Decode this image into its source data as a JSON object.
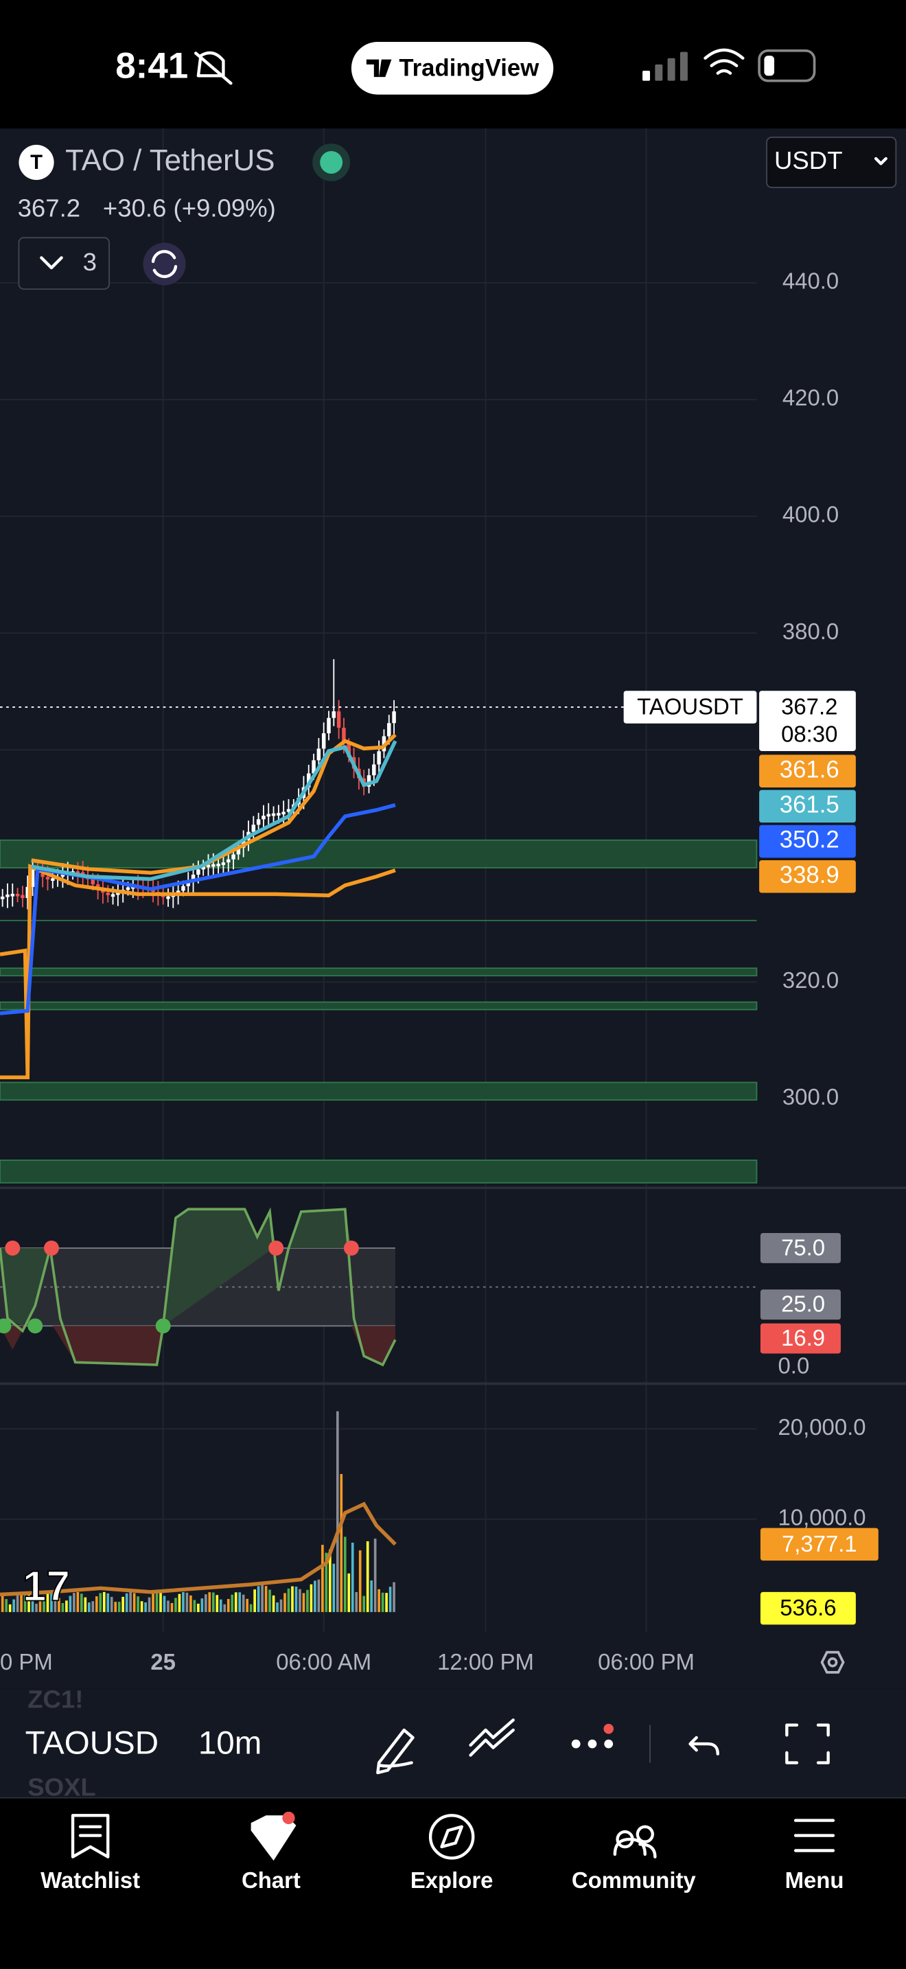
{
  "status_bar": {
    "time": "8:41",
    "app_name": "TradingView"
  },
  "symbol": {
    "name": "TAO / TetherUS",
    "last_price": "367.2",
    "change": "+30.6 (+9.09%)",
    "indicator_count": "3",
    "currency": "USDT"
  },
  "price_axis": [
    "440.0",
    "420.0",
    "400.0",
    "380.0",
    "320.0",
    "300.0"
  ],
  "price_tags": {
    "symbol": "TAOUSDT",
    "price": "367.2",
    "countdown": "08:30",
    "indicators": [
      "361.6",
      "361.5",
      "350.2",
      "338.9"
    ]
  },
  "oscillator": {
    "axis": [
      "75.0",
      "25.0",
      "0.0"
    ],
    "value": "16.9"
  },
  "volume": {
    "axis": [
      "20,000.0",
      "10,000.0"
    ],
    "ma_value": "7,377.1",
    "value": "536.6"
  },
  "time_axis": [
    "0 PM",
    "25",
    "06:00 AM",
    "12:00 PM",
    "06:00 PM"
  ],
  "toolbar": {
    "symbol": "TAOUSD",
    "interval": "10m",
    "watchlist_peek": [
      "ZC1!",
      "SOXL"
    ]
  },
  "tabs": [
    "Watchlist",
    "Chart",
    "Explore",
    "Community",
    "Menu"
  ]
}
